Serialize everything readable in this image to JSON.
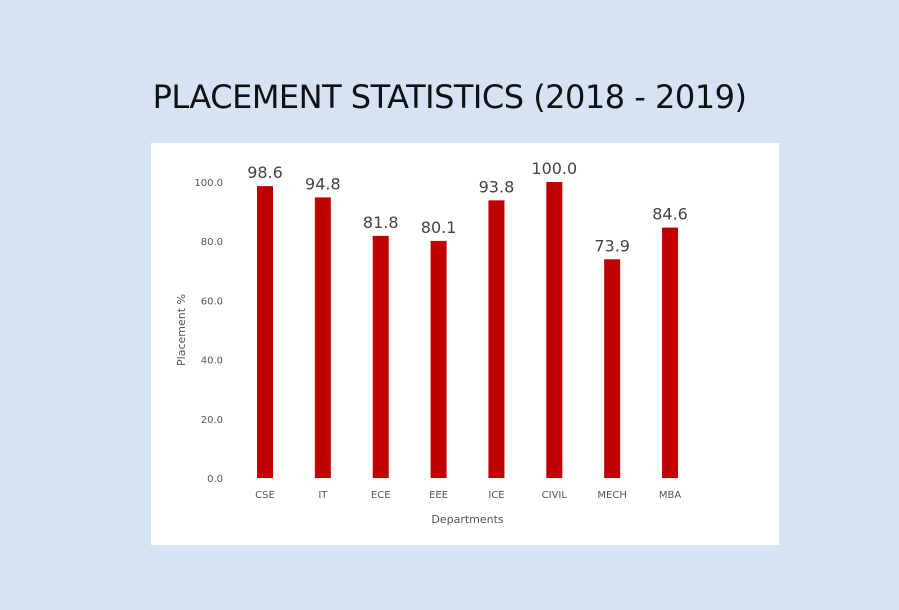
{
  "page": {
    "title": "PLACEMENT STATISTICS (2018 - 2019)"
  },
  "chart_data": {
    "type": "bar",
    "categories": [
      "CSE",
      "IT",
      "ECE",
      "EEE",
      "ICE",
      "CIVIL",
      "MECH",
      "MBA"
    ],
    "values": [
      98.6,
      94.8,
      81.8,
      80.1,
      93.8,
      100.0,
      73.9,
      84.6
    ],
    "data_labels": [
      "98.6",
      "94.8",
      "81.8",
      "80.1",
      "93.8",
      "100.0",
      "73.9",
      "84.6"
    ],
    "y_ticks": [
      "0.0",
      "20.0",
      "40.0",
      "60.0",
      "80.0",
      "100.0"
    ],
    "xlabel": "Departments",
    "ylabel": "Placement %",
    "ylim": [
      0,
      100
    ],
    "grid": false,
    "legend": false,
    "bar_color": "#c00000"
  }
}
